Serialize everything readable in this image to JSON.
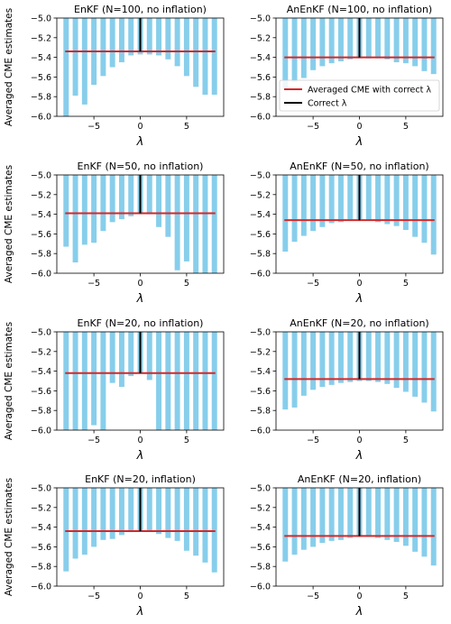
{
  "colors": {
    "bar": "#87ceeb",
    "reference_line": "#d62728",
    "correct_line": "#000000"
  },
  "shared_ylabel": "Averaged CME estimates",
  "legend": {
    "entries": [
      {
        "label": "Averaged CME with correct λ",
        "color": "#d62728"
      },
      {
        "label": "Correct λ",
        "color": "#000000"
      }
    ],
    "placement": "inside panel AnEnKF (N=100, no inflation), lower-right"
  },
  "chart_data": [
    {
      "type": "bar",
      "title": "EnKF (N=100, no inflation)",
      "xlabel": "λ",
      "ylabel": "Averaged CME estimates",
      "x": [
        -8,
        -7,
        -6,
        -5,
        -4,
        -3,
        -2,
        -1,
        0,
        1,
        2,
        3,
        4,
        5,
        6,
        7,
        8
      ],
      "values": [
        -6.0,
        -5.79,
        -5.88,
        -5.68,
        -5.59,
        -5.5,
        -5.45,
        -5.38,
        -5.37,
        -5.37,
        -5.38,
        -5.42,
        -5.49,
        -5.59,
        -5.7,
        -5.78,
        -5.78
      ],
      "reference_line": -5.34,
      "correct_lambda": 0,
      "ylim": [
        -6.0,
        -5.0
      ],
      "yticks": [
        -6.0,
        -5.8,
        -5.6,
        -5.4,
        -5.2,
        -5.0
      ],
      "xticks": [
        -5,
        0,
        5
      ]
    },
    {
      "type": "bar",
      "title": "AnEnKF (N=100, no inflation)",
      "xlabel": "λ",
      "ylabel": "",
      "x": [
        -8,
        -7,
        -6,
        -5,
        -4,
        -3,
        -2,
        -1,
        0,
        1,
        2,
        3,
        4,
        5,
        6,
        7,
        8
      ],
      "values": [
        -5.72,
        -5.65,
        -5.61,
        -5.53,
        -5.49,
        -5.46,
        -5.44,
        -5.42,
        -5.41,
        -5.41,
        -5.41,
        -5.42,
        -5.45,
        -5.46,
        -5.49,
        -5.54,
        -5.57
      ],
      "reference_line": -5.4,
      "correct_lambda": 0,
      "ylim": [
        -6.0,
        -5.0
      ],
      "yticks": [
        -6.0,
        -5.8,
        -5.6,
        -5.4,
        -5.2,
        -5.0
      ],
      "xticks": [
        -5,
        0,
        5
      ]
    },
    {
      "type": "bar",
      "title": "EnKF (N=50, no inflation)",
      "xlabel": "λ",
      "ylabel": "Averaged CME estimates",
      "x": [
        -8,
        -7,
        -6,
        -5,
        -4,
        -3,
        -2,
        -1,
        0,
        1,
        2,
        3,
        4,
        5,
        6,
        7,
        8
      ],
      "values": [
        -5.73,
        -5.89,
        -5.71,
        -5.69,
        -5.57,
        -5.48,
        -5.45,
        -5.42,
        -5.4,
        -5.4,
        -5.53,
        -5.63,
        -5.97,
        -5.88,
        -6.0,
        -6.0,
        -6.0
      ],
      "reference_line": -5.39,
      "correct_lambda": 0,
      "ylim": [
        -6.0,
        -5.0
      ],
      "yticks": [
        -6.0,
        -5.8,
        -5.6,
        -5.4,
        -5.2,
        -5.0
      ],
      "xticks": [
        -5,
        0,
        5
      ]
    },
    {
      "type": "bar",
      "title": "AnEnKF (N=50, no inflation)",
      "xlabel": "λ",
      "ylabel": "",
      "x": [
        -8,
        -7,
        -6,
        -5,
        -4,
        -3,
        -2,
        -1,
        0,
        1,
        2,
        3,
        4,
        5,
        6,
        7,
        8
      ],
      "values": [
        -5.78,
        -5.68,
        -5.62,
        -5.57,
        -5.53,
        -5.49,
        -5.48,
        -5.46,
        -5.45,
        -5.46,
        -5.48,
        -5.5,
        -5.52,
        -5.56,
        -5.63,
        -5.69,
        -5.81
      ],
      "reference_line": -5.46,
      "correct_lambda": 0,
      "ylim": [
        -6.0,
        -5.0
      ],
      "yticks": [
        -6.0,
        -5.8,
        -5.6,
        -5.4,
        -5.2,
        -5.0
      ],
      "xticks": [
        -5,
        0,
        5
      ]
    },
    {
      "type": "bar",
      "title": "EnKF (N=20, no inflation)",
      "xlabel": "λ",
      "ylabel": "Averaged CME estimates",
      "x": [
        -8,
        -7,
        -6,
        -5,
        -4,
        -3,
        -2,
        -1,
        0,
        1,
        2,
        3,
        4,
        5,
        6,
        7,
        8
      ],
      "values": [
        -6.0,
        -6.0,
        -6.0,
        -5.95,
        -6.0,
        -5.52,
        -5.56,
        -5.45,
        -5.42,
        -5.49,
        -6.0,
        -6.0,
        -6.0,
        -6.0,
        -6.0,
        -6.0,
        -6.0
      ],
      "reference_line": -5.42,
      "correct_lambda": 0,
      "ylim": [
        -6.0,
        -5.0
      ],
      "yticks": [
        -6.0,
        -5.8,
        -5.6,
        -5.4,
        -5.2,
        -5.0
      ],
      "xticks": [
        -5,
        0,
        5
      ]
    },
    {
      "type": "bar",
      "title": "AnEnKF (N=20, no inflation)",
      "xlabel": "λ",
      "ylabel": "",
      "x": [
        -8,
        -7,
        -6,
        -5,
        -4,
        -3,
        -2,
        -1,
        0,
        1,
        2,
        3,
        4,
        5,
        6,
        7,
        8
      ],
      "values": [
        -5.79,
        -5.77,
        -5.65,
        -5.59,
        -5.56,
        -5.54,
        -5.52,
        -5.51,
        -5.5,
        -5.5,
        -5.51,
        -5.53,
        -5.57,
        -5.61,
        -5.66,
        -5.72,
        -5.81
      ],
      "reference_line": -5.48,
      "correct_lambda": 0,
      "ylim": [
        -6.0,
        -5.0
      ],
      "yticks": [
        -6.0,
        -5.8,
        -5.6,
        -5.4,
        -5.2,
        -5.0
      ],
      "xticks": [
        -5,
        0,
        5
      ]
    },
    {
      "type": "bar",
      "title": "EnKF (N=20, inflation)",
      "xlabel": "λ",
      "ylabel": "Averaged CME estimates",
      "x": [
        -8,
        -7,
        -6,
        -5,
        -4,
        -3,
        -2,
        -1,
        0,
        1,
        2,
        3,
        4,
        5,
        6,
        7,
        8
      ],
      "values": [
        -5.85,
        -5.72,
        -5.68,
        -5.6,
        -5.53,
        -5.52,
        -5.48,
        -5.45,
        -5.44,
        -5.44,
        -5.47,
        -5.51,
        -5.54,
        -5.64,
        -5.69,
        -5.76,
        -5.86
      ],
      "reference_line": -5.44,
      "correct_lambda": 0,
      "ylim": [
        -6.0,
        -5.0
      ],
      "yticks": [
        -6.0,
        -5.8,
        -5.6,
        -5.4,
        -5.2,
        -5.0
      ],
      "xticks": [
        -5,
        0,
        5
      ]
    },
    {
      "type": "bar",
      "title": "AnEnKF (N=20, inflation)",
      "xlabel": "λ",
      "ylabel": "",
      "x": [
        -8,
        -7,
        -6,
        -5,
        -4,
        -3,
        -2,
        -1,
        0,
        1,
        2,
        3,
        4,
        5,
        6,
        7,
        8
      ],
      "values": [
        -5.75,
        -5.68,
        -5.63,
        -5.6,
        -5.56,
        -5.54,
        -5.53,
        -5.51,
        -5.5,
        -5.5,
        -5.51,
        -5.53,
        -5.55,
        -5.59,
        -5.65,
        -5.7,
        -5.79
      ],
      "reference_line": -5.49,
      "correct_lambda": 0,
      "ylim": [
        -6.0,
        -5.0
      ],
      "yticks": [
        -6.0,
        -5.8,
        -5.6,
        -5.4,
        -5.2,
        -5.0
      ],
      "xticks": [
        -5,
        0,
        5
      ]
    }
  ]
}
